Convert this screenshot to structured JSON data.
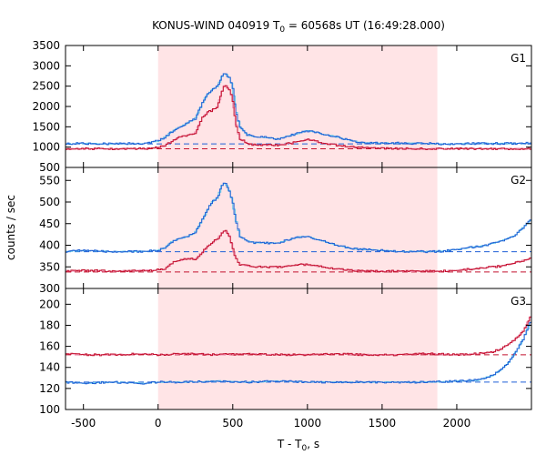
{
  "chart_data": {
    "type": "line",
    "title": {
      "prefix": "KONUS-WIND 040919 T",
      "sub": "0",
      "suffix": " = 60568s UT (16:49:28.000)"
    },
    "xlabel": {
      "prefix": "T - T",
      "sub": "0",
      "suffix": ", s"
    },
    "ylabel": "counts / sec",
    "xlim": [
      -620,
      2500
    ],
    "x_ticks": [
      -500,
      0,
      500,
      1000,
      1500,
      2000
    ],
    "shaded_interval": [
      0,
      1870
    ],
    "colors": {
      "blue_curve": "#1f5fd6",
      "blue_model": "#5fc8e8",
      "red_curve": "#c4122f",
      "red_model": "#f08ab0",
      "shade": "#ffe4e6"
    },
    "panels": [
      {
        "label": "G1",
        "ylim": [
          500,
          3500
        ],
        "y_ticks": [
          500,
          1000,
          1500,
          2000,
          2500,
          3000,
          3500
        ],
        "y_tick_labels": [
          "500",
          "1000",
          "1500",
          "2000",
          "2500",
          "3000",
          "3500"
        ],
        "background": {
          "blue": 1080,
          "red": 960
        },
        "series": [
          {
            "color": "blue",
            "x": [
              -620,
              -500,
              -300,
              -100,
              0,
              50,
              100,
              150,
              200,
              250,
              300,
              330,
              360,
              400,
              430,
              450,
              480,
              500,
              520,
              550,
              600,
              650,
              700,
              800,
              900,
              950,
              1000,
              1050,
              1100,
              1200,
              1300,
              1400,
              1500,
              1600,
              1700,
              1800,
              1900,
              2000,
              2100,
              2200,
              2300,
              2400,
              2500
            ],
            "y": [
              1080,
              1090,
              1080,
              1090,
              1150,
              1250,
              1400,
              1500,
              1600,
              1700,
              2100,
              2300,
              2400,
              2500,
              2750,
              2820,
              2700,
              2500,
              1900,
              1500,
              1300,
              1250,
              1250,
              1200,
              1300,
              1350,
              1400,
              1380,
              1320,
              1250,
              1150,
              1100,
              1100,
              1100,
              1090,
              1090,
              1080,
              1080,
              1090,
              1090,
              1090,
              1090,
              1100
            ]
          },
          {
            "color": "red",
            "x": [
              -620,
              -500,
              -300,
              -100,
              0,
              50,
              100,
              150,
              200,
              250,
              300,
              330,
              360,
              400,
              430,
              450,
              480,
              500,
              520,
              550,
              600,
              650,
              700,
              800,
              900,
              950,
              1000,
              1050,
              1100,
              1200,
              1300,
              1400,
              1500,
              1600,
              1700,
              1800,
              1900,
              2000,
              2100,
              2200,
              2300,
              2400,
              2500
            ],
            "y": [
              960,
              960,
              960,
              960,
              990,
              1050,
              1150,
              1250,
              1300,
              1350,
              1750,
              1850,
              1900,
              2000,
              2400,
              2550,
              2400,
              2200,
              1600,
              1200,
              1100,
              1050,
              1050,
              1050,
              1100,
              1150,
              1200,
              1150,
              1100,
              1050,
              1000,
              980,
              970,
              960,
              960,
              960,
              960,
              960,
              960,
              960,
              960,
              960,
              960
            ]
          }
        ]
      },
      {
        "label": "G2",
        "ylim": [
          300,
          580
        ],
        "y_ticks": [
          300,
          350,
          400,
          450,
          500,
          550
        ],
        "y_tick_labels": [
          "300",
          "350",
          "400",
          "450",
          "500",
          "550"
        ],
        "background": {
          "blue": 385,
          "red": 338
        },
        "series": [
          {
            "color": "blue",
            "x": [
              -620,
              -500,
              -300,
              -100,
              0,
              50,
              100,
              150,
              200,
              250,
              300,
              330,
              360,
              400,
              430,
              450,
              480,
              500,
              520,
              550,
              600,
              650,
              700,
              800,
              900,
              950,
              1000,
              1050,
              1100,
              1200,
              1300,
              1400,
              1500,
              1600,
              1700,
              1800,
              1900,
              2000,
              2100,
              2200,
              2300,
              2400,
              2500
            ],
            "y": [
              385,
              388,
              385,
              386,
              388,
              395,
              410,
              415,
              420,
              430,
              460,
              480,
              500,
              510,
              540,
              545,
              525,
              500,
              460,
              420,
              410,
              405,
              405,
              405,
              415,
              420,
              420,
              415,
              410,
              400,
              392,
              390,
              388,
              386,
              386,
              385,
              386,
              390,
              395,
              400,
              410,
              425,
              460
            ]
          },
          {
            "color": "red",
            "x": [
              -620,
              -500,
              -300,
              -100,
              0,
              50,
              100,
              150,
              200,
              250,
              300,
              330,
              360,
              400,
              430,
              450,
              480,
              500,
              520,
              550,
              600,
              650,
              700,
              800,
              900,
              950,
              1000,
              1050,
              1100,
              1200,
              1300,
              1400,
              1500,
              1600,
              1700,
              1800,
              1900,
              2000,
              2100,
              2200,
              2300,
              2400,
              2500
            ],
            "y": [
              340,
              342,
              340,
              342,
              343,
              345,
              360,
              365,
              370,
              368,
              385,
              395,
              405,
              415,
              430,
              435,
              420,
              395,
              370,
              355,
              352,
              350,
              350,
              350,
              352,
              355,
              355,
              352,
              350,
              345,
              342,
              340,
              340,
              340,
              340,
              340,
              340,
              342,
              345,
              348,
              352,
              360,
              370
            ]
          }
        ]
      },
      {
        "label": "G3",
        "ylim": [
          100,
          215
        ],
        "y_ticks": [
          100,
          120,
          140,
          160,
          180,
          200
        ],
        "y_tick_labels": [
          "100",
          "120",
          "140",
          "160",
          "180",
          "200"
        ],
        "background": {
          "blue": 126,
          "red": 152
        },
        "series": [
          {
            "color": "blue",
            "x": [
              -620,
              -500,
              -300,
              -100,
              0,
              200,
              400,
              600,
              800,
              1000,
              1200,
              1400,
              1600,
              1800,
              2000,
              2150,
              2250,
              2300,
              2350,
              2400,
              2450,
              2500
            ],
            "y": [
              126,
              125,
              126,
              125,
              126,
              126,
              127,
              126,
              127,
              126,
              126,
              126,
              126,
              126,
              127,
              128,
              133,
              138,
              145,
              155,
              168,
              185
            ]
          },
          {
            "color": "red",
            "x": [
              -620,
              -500,
              -300,
              -100,
              0,
              200,
              400,
              600,
              800,
              1000,
              1200,
              1400,
              1600,
              1800,
              2000,
              2150,
              2250,
              2300,
              2350,
              2400,
              2450,
              2500
            ],
            "y": [
              153,
              152,
              152,
              153,
              152,
              153,
              152,
              153,
              152,
              152,
              153,
              152,
              152,
              153,
              152,
              153,
              155,
              158,
              162,
              168,
              175,
              190
            ]
          }
        ]
      }
    ]
  }
}
